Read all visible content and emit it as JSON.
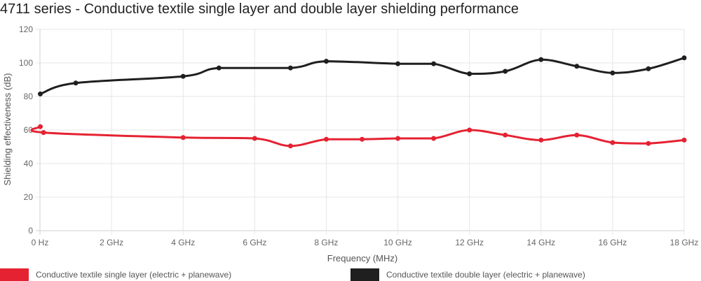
{
  "chart_data": {
    "type": "line",
    "title": "4711 series - Conductive textile single layer and double layer shielding performance",
    "xlabel": "Frequency (MHz)",
    "ylabel": "Shielding effectiveness (dB)",
    "xlim": [
      0,
      18000
    ],
    "ylim": [
      0,
      120
    ],
    "x_ticks": [
      0,
      2000,
      4000,
      6000,
      8000,
      10000,
      12000,
      14000,
      16000,
      18000
    ],
    "x_tick_labels": [
      "0 Hz",
      "2 GHz",
      "4 GHz",
      "6 GHz",
      "8 GHz",
      "10 GHz",
      "12 GHz",
      "14 GHz",
      "16 GHz",
      "18 GHz"
    ],
    "y_ticks": [
      0,
      20,
      40,
      60,
      80,
      100,
      120
    ],
    "y_tick_labels": [
      "0",
      "20",
      "40",
      "60",
      "80",
      "100",
      "120"
    ],
    "grid": true,
    "legend_position": "bottom",
    "series": [
      {
        "name": "Conductive textile single layer (electric + planewave)",
        "color": "#e52232",
        "points": [
          [
            10,
            62
          ],
          [
            100,
            58.5
          ],
          [
            4000,
            55.5
          ],
          [
            6000,
            55
          ],
          [
            7000,
            50.5
          ],
          [
            8000,
            54.5
          ],
          [
            9000,
            54.5
          ],
          [
            10000,
            55
          ],
          [
            11000,
            55
          ],
          [
            12000,
            60
          ],
          [
            13000,
            57
          ],
          [
            14000,
            54
          ],
          [
            15000,
            57
          ],
          [
            16000,
            52.5
          ],
          [
            17000,
            52
          ],
          [
            18000,
            54
          ]
        ]
      },
      {
        "name": "Conductive textile double layer (electric + planewave)",
        "color": "#1f1f1f",
        "points": [
          [
            10,
            81.5
          ],
          [
            1000,
            88
          ],
          [
            4000,
            92
          ],
          [
            5000,
            97
          ],
          [
            7000,
            97
          ],
          [
            8000,
            101
          ],
          [
            10000,
            99.5
          ],
          [
            11000,
            99.5
          ],
          [
            12000,
            93.5
          ],
          [
            13000,
            95
          ],
          [
            14000,
            102
          ],
          [
            15000,
            98
          ],
          [
            16000,
            94
          ],
          [
            17000,
            96.5
          ],
          [
            18000,
            103
          ]
        ]
      }
    ]
  }
}
